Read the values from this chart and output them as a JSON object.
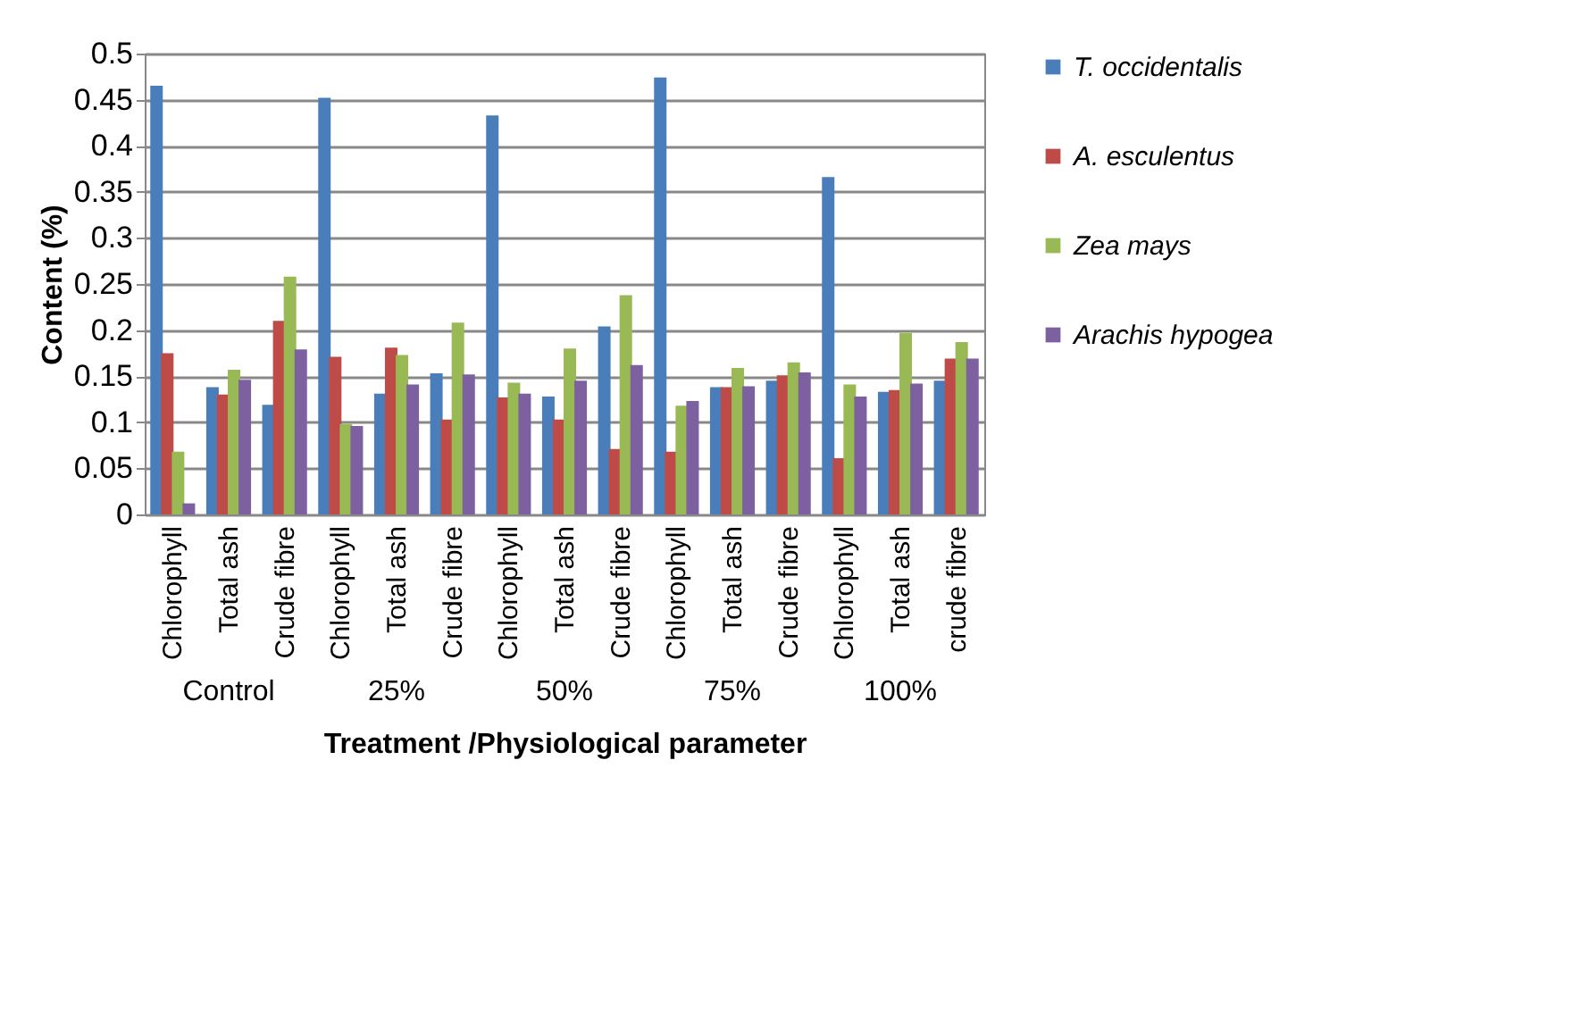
{
  "chart_data": {
    "type": "bar",
    "categories": [
      "Chlorophyll",
      "Total ash",
      "Crude fibre",
      "Chlorophyll",
      "Total ash",
      "Crude fibre",
      "Chlorophyll",
      "Total ash",
      "Crude fibre",
      "Chlorophyll",
      "Total ash",
      "Crude fibre",
      "Chlorophyll",
      "Total ash",
      "crude fibre"
    ],
    "series": [
      {
        "name": "T. occidentalis",
        "color": "#4a7ebb",
        "values": [
          0.465,
          0.138,
          0.119,
          0.452,
          0.131,
          0.153,
          0.433,
          0.128,
          0.204,
          0.474,
          0.138,
          0.145,
          0.366,
          0.133,
          0.145
        ]
      },
      {
        "name": "A. esculentus",
        "color": "#be4b48",
        "values": [
          0.175,
          0.13,
          0.21,
          0.171,
          0.181,
          0.103,
          0.127,
          0.103,
          0.071,
          0.068,
          0.138,
          0.151,
          0.061,
          0.135,
          0.169
        ]
      },
      {
        "name": "Zea mays",
        "color": "#98b954",
        "values": [
          0.068,
          0.157,
          0.258,
          0.098,
          0.173,
          0.208,
          0.143,
          0.18,
          0.238,
          0.118,
          0.159,
          0.165,
          0.141,
          0.197,
          0.187
        ]
      },
      {
        "name": "Arachis hypogea",
        "color": "#7d60a0",
        "values": [
          0.012,
          0.146,
          0.179,
          0.096,
          0.141,
          0.152,
          0.131,
          0.145,
          0.162,
          0.123,
          0.139,
          0.154,
          0.128,
          0.142,
          0.169
        ]
      }
    ],
    "xlabel": "Treatment /Physiological parameter",
    "ylabel": "Content (%)",
    "annotations": [
      "Control",
      "25%",
      "50%",
      "75%",
      "100%"
    ],
    "ylim": [
      0,
      0.5
    ],
    "yticks": [
      0,
      0.05,
      0.1,
      0.15,
      0.2,
      0.25,
      0.3,
      0.35,
      0.4,
      0.45,
      0.5
    ],
    "grid": "y",
    "legend": "right"
  }
}
